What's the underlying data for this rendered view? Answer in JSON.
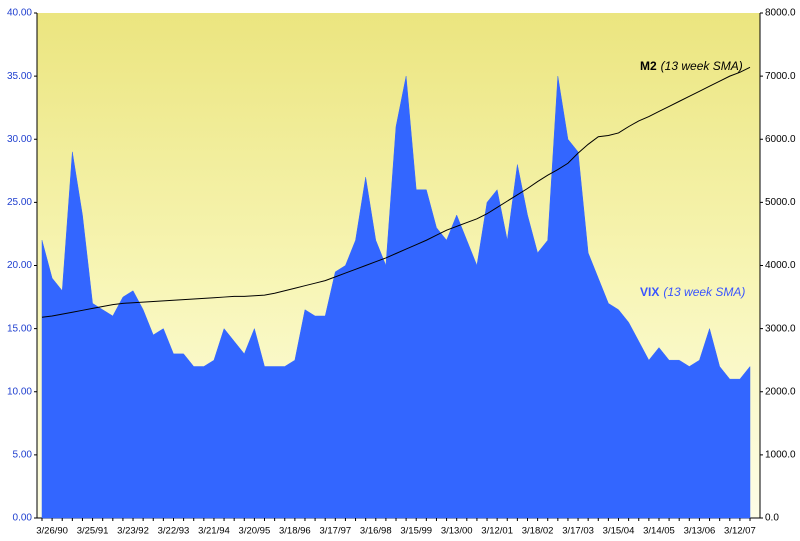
{
  "chart_data": {
    "type": "area-line",
    "categories": [
      null,
      "3/26/90",
      null,
      null,
      null,
      "3/25/91",
      null,
      null,
      null,
      "3/23/92",
      null,
      null,
      null,
      "3/22/93",
      null,
      null,
      null,
      "3/21/94",
      null,
      null,
      null,
      "3/20/95",
      null,
      null,
      null,
      "3/18/96",
      null,
      null,
      null,
      "3/17/97",
      null,
      null,
      null,
      "3/16/98",
      null,
      null,
      null,
      "3/15/99",
      null,
      null,
      null,
      "3/13/00",
      null,
      null,
      null,
      "3/12/01",
      null,
      null,
      null,
      "3/18/02",
      null,
      null,
      null,
      "3/17/03",
      null,
      null,
      null,
      "3/15/04",
      null,
      null,
      null,
      "3/14/05",
      null,
      null,
      null,
      "3/13/06",
      null,
      null,
      null,
      "3/12/07",
      null
    ],
    "series": [
      {
        "name": "VIX",
        "note": "(13 week SMA)",
        "color": "#3366ff",
        "kind": "area",
        "values": [
          22,
          19,
          18,
          29,
          24,
          17,
          16.5,
          16,
          17.5,
          18,
          16.5,
          14.5,
          15,
          13,
          13,
          12,
          12,
          12.5,
          15,
          14,
          13,
          15,
          12,
          12,
          12,
          12.5,
          16.5,
          16,
          16,
          19.5,
          20,
          22,
          27,
          22,
          20,
          31,
          35,
          26,
          26,
          23,
          22,
          24,
          22,
          20,
          25,
          26,
          22,
          28,
          24,
          21,
          22,
          35,
          30,
          29,
          21,
          19,
          17,
          16.5,
          15.5,
          14,
          12.5,
          13.5,
          12.5,
          12.5,
          12,
          12.5,
          15,
          12,
          11,
          11,
          12
        ]
      },
      {
        "name": "M2",
        "note": "(13 week SMA)",
        "color": "#000000",
        "kind": "line",
        "axis": "y2",
        "values": [
          3180,
          3200,
          3230,
          3260,
          3290,
          3320,
          3350,
          3380,
          3400,
          3410,
          3420,
          3430,
          3440,
          3450,
          3460,
          3470,
          3480,
          3490,
          3500,
          3510,
          3510,
          3520,
          3530,
          3560,
          3600,
          3640,
          3680,
          3720,
          3760,
          3820,
          3880,
          3940,
          4000,
          4060,
          4120,
          4190,
          4260,
          4330,
          4400,
          4480,
          4560,
          4620,
          4680,
          4740,
          4820,
          4920,
          5020,
          5120,
          5220,
          5330,
          5430,
          5520,
          5620,
          5780,
          5920,
          6040,
          6060,
          6100,
          6200,
          6290,
          6360,
          6440,
          6520,
          6600,
          6680,
          6760,
          6840,
          6920,
          7000,
          7060,
          7140
        ]
      }
    ],
    "ylim": [
      0,
      40
    ],
    "yticks": [
      {
        "value": 0,
        "label": "0.00"
      },
      {
        "value": 5,
        "label": "5.00"
      },
      {
        "value": 10,
        "label": "10.00"
      },
      {
        "value": 15,
        "label": "15.00"
      },
      {
        "value": 20,
        "label": "20.00"
      },
      {
        "value": 25,
        "label": "25.00"
      },
      {
        "value": 30,
        "label": "30.00"
      },
      {
        "value": 35,
        "label": "35.00"
      },
      {
        "value": 40,
        "label": "40.00"
      }
    ],
    "y2lim": [
      0,
      8000
    ],
    "y2ticks": [
      {
        "value": 0,
        "label": "0.0"
      },
      {
        "value": 1000,
        "label": "1000.0"
      },
      {
        "value": 2000,
        "label": "2000.0"
      },
      {
        "value": 3000,
        "label": "3000.0"
      },
      {
        "value": 4000,
        "label": "4000.0"
      },
      {
        "value": 5000,
        "label": "5000.0"
      },
      {
        "value": 6000,
        "label": "6000.0"
      },
      {
        "value": 7000,
        "label": "7000.0"
      },
      {
        "value": 8000,
        "label": "8000.0"
      }
    ]
  }
}
